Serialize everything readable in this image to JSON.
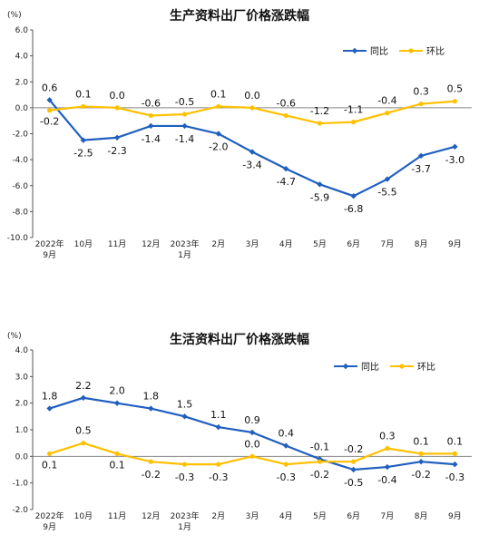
{
  "chart_data": [
    {
      "type": "line",
      "title": "生产资料出厂价格涨跌幅",
      "unit": "(%)",
      "categories": [
        [
          "2022年",
          "9月"
        ],
        [
          "10月"
        ],
        [
          "11月"
        ],
        [
          "12月"
        ],
        [
          "2023年",
          "1月"
        ],
        [
          "2月"
        ],
        [
          "3月"
        ],
        [
          "4月"
        ],
        [
          "5月"
        ],
        [
          "6月"
        ],
        [
          "7月"
        ],
        [
          "8月"
        ],
        [
          "9月"
        ]
      ],
      "ylim": [
        -10,
        6
      ],
      "yticks": [
        "6.0",
        "4.0",
        "2.0",
        "0.0",
        "-2.0",
        "-4.0",
        "-6.0",
        "-8.0",
        "-10.0"
      ],
      "series": [
        {
          "name": "同比",
          "color": "#1f5fbf",
          "marker": "diamond",
          "values": [
            0.6,
            -2.5,
            -2.3,
            -1.4,
            -1.4,
            -2.0,
            -3.4,
            -4.7,
            -5.9,
            -6.8,
            -5.5,
            -3.7,
            -3.0
          ],
          "labels": [
            "0.6",
            "-2.5",
            "-2.3",
            "-1.4",
            "-1.4",
            "-2.0",
            "-3.4",
            "-4.7",
            "-5.9",
            "-6.8",
            "-5.5",
            "-3.7",
            "-3.0"
          ]
        },
        {
          "name": "环比",
          "color": "#ffc000",
          "marker": "circle",
          "values": [
            -0.2,
            0.1,
            0.0,
            -0.6,
            -0.5,
            0.1,
            0.0,
            -0.6,
            -1.2,
            -1.1,
            -0.4,
            0.3,
            0.5
          ],
          "labels": [
            "-0.2",
            "0.1",
            "0.0",
            "-0.6",
            "-0.5",
            "0.1",
            "0.0",
            "-0.6",
            "-1.2",
            "-1.1",
            "-0.4",
            "0.3",
            "0.5"
          ]
        }
      ],
      "legend": "top-right",
      "grid": false
    },
    {
      "type": "line",
      "title": "生活资料出厂价格涨跌幅",
      "unit": "(%)",
      "categories": [
        [
          "2022年",
          "9月"
        ],
        [
          "10月"
        ],
        [
          "11月"
        ],
        [
          "12月"
        ],
        [
          "2023年",
          "1月"
        ],
        [
          "2月"
        ],
        [
          "3月"
        ],
        [
          "4月"
        ],
        [
          "5月"
        ],
        [
          "6月"
        ],
        [
          "7月"
        ],
        [
          "8月"
        ],
        [
          "9月"
        ]
      ],
      "ylim": [
        -2,
        4
      ],
      "yticks": [
        "4.0",
        "3.0",
        "2.0",
        "1.0",
        "0.0",
        "-1.0",
        "-2.0"
      ],
      "series": [
        {
          "name": "同比",
          "color": "#1f5fbf",
          "marker": "diamond",
          "values": [
            1.8,
            2.2,
            2.0,
            1.8,
            1.5,
            1.1,
            0.9,
            0.4,
            -0.1,
            -0.5,
            -0.4,
            -0.2,
            -0.3
          ],
          "labels": [
            "1.8",
            "2.2",
            "2.0",
            "1.8",
            "1.5",
            "1.1",
            "0.9",
            "0.4",
            "-0.1",
            "-0.5",
            "-0.4",
            "-0.2",
            "-0.3"
          ]
        },
        {
          "name": "环比",
          "color": "#ffc000",
          "marker": "circle",
          "values": [
            0.1,
            0.5,
            0.1,
            -0.2,
            -0.3,
            -0.3,
            0.0,
            -0.3,
            -0.2,
            -0.2,
            0.3,
            0.1,
            0.1
          ],
          "labels": [
            "0.1",
            "0.5",
            "0.1",
            "-0.2",
            "-0.3",
            "-0.3",
            "0.0",
            "-0.3",
            "-0.2",
            "-0.2",
            "0.3",
            "0.1",
            "0.1"
          ]
        }
      ],
      "legend": "top-right",
      "grid": false
    }
  ]
}
